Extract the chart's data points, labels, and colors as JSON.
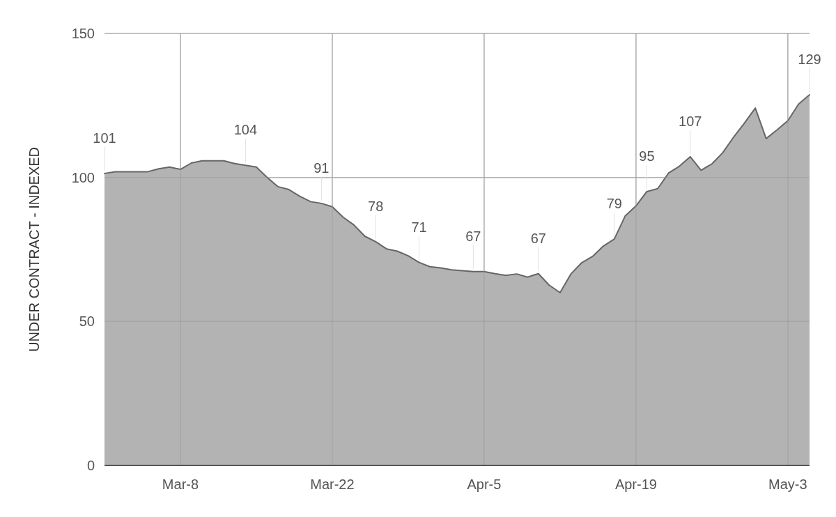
{
  "chart_data": {
    "type": "area",
    "ylabel": "UNDER CONTRACT - INDEXED",
    "x": [
      "--03-01",
      "--03-02",
      "--03-03",
      "--03-04",
      "--03-05",
      "--03-06",
      "--03-07",
      "--03-08",
      "--03-09",
      "--03-10",
      "--03-11",
      "--03-12",
      "--03-13",
      "--03-14",
      "--03-15",
      "--03-16",
      "--03-17",
      "--03-18",
      "--03-19",
      "--03-20",
      "--03-21",
      "--03-22",
      "--03-23",
      "--03-24",
      "--03-25",
      "--03-26",
      "--03-27",
      "--03-28",
      "--03-29",
      "--03-30",
      "--03-31",
      "--04-01",
      "--04-02",
      "--04-03",
      "--04-04",
      "--04-05",
      "--04-06",
      "--04-07",
      "--04-08",
      "--04-09",
      "--04-10",
      "--04-11",
      "--04-12",
      "--04-13",
      "--04-14",
      "--04-15",
      "--04-16",
      "--04-17",
      "--04-18",
      "--04-19",
      "--04-20",
      "--04-21",
      "--04-22",
      "--04-23",
      "--04-24",
      "--04-25",
      "--04-26",
      "--04-27",
      "--04-28",
      "--04-29",
      "--04-30",
      "--05-01",
      "--05-02",
      "--05-03",
      "--05-04",
      "--05-05"
    ],
    "series": [
      {
        "color": "#666666",
        "values": [
          101.4,
          102,
          102,
          102,
          102,
          103,
          103.6,
          102.8,
          105,
          105.8,
          105.8,
          105.8,
          104.8,
          104.2,
          103.6,
          100,
          96.8,
          95.8,
          93.5,
          91.6,
          91,
          89.8,
          86.2,
          83.5,
          79.6,
          77.7,
          75.2,
          74.4,
          72.8,
          70.5,
          69,
          68.6,
          67.9,
          67.6,
          67.3,
          67.3,
          66.6,
          66,
          66.5,
          65.4,
          66.6,
          62.6,
          60,
          66.5,
          70.4,
          72.6,
          76.2,
          78.6,
          86.6,
          90.1,
          95.1,
          96.1,
          101.5,
          103.9,
          107.2,
          102.5,
          104.7,
          108.6,
          114,
          118.9,
          124.1,
          113.5,
          116.5,
          119.7,
          125.5,
          128.7
        ],
        "value_labels": [
          "101",
          null,
          null,
          null,
          null,
          null,
          null,
          null,
          null,
          null,
          null,
          null,
          null,
          "104",
          null,
          null,
          null,
          null,
          null,
          null,
          "91",
          null,
          null,
          null,
          null,
          "78",
          null,
          null,
          null,
          "71",
          null,
          null,
          null,
          null,
          "67",
          null,
          null,
          null,
          null,
          null,
          "67",
          null,
          null,
          null,
          null,
          null,
          null,
          "79",
          null,
          null,
          "95",
          null,
          null,
          null,
          "107",
          null,
          null,
          null,
          null,
          null,
          null,
          null,
          null,
          null,
          null,
          "129"
        ]
      }
    ],
    "xlim": [
      "--03-01",
      "--05-05"
    ],
    "xticks": [
      {
        "value": "--03-08",
        "label": "Mar-8"
      },
      {
        "value": "--03-22",
        "label": "Mar-22"
      },
      {
        "value": "--04-05",
        "label": "Apr-5"
      },
      {
        "value": "--04-19",
        "label": "Apr-19"
      },
      {
        "value": "--05-03",
        "label": "May-3"
      }
    ],
    "ylim": [
      0,
      150
    ],
    "yticks": [
      0,
      50,
      100,
      150
    ],
    "grid": true
  }
}
